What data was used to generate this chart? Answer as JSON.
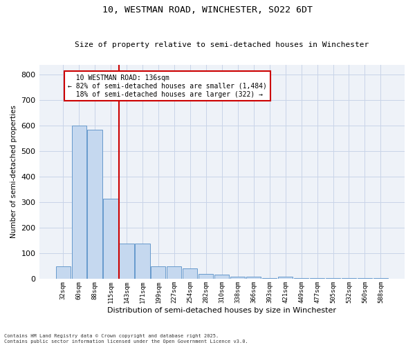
{
  "title_line1": "10, WESTMAN ROAD, WINCHESTER, SO22 6DT",
  "title_line2": "Size of property relative to semi-detached houses in Winchester",
  "xlabel": "Distribution of semi-detached houses by size in Winchester",
  "ylabel": "Number of semi-detached properties",
  "categories": [
    "32sqm",
    "60sqm",
    "88sqm",
    "115sqm",
    "143sqm",
    "171sqm",
    "199sqm",
    "227sqm",
    "254sqm",
    "282sqm",
    "310sqm",
    "338sqm",
    "366sqm",
    "393sqm",
    "421sqm",
    "449sqm",
    "477sqm",
    "505sqm",
    "532sqm",
    "560sqm",
    "588sqm"
  ],
  "values": [
    50,
    600,
    585,
    315,
    140,
    140,
    50,
    50,
    43,
    20,
    18,
    9,
    9,
    4,
    9,
    4,
    4,
    4,
    4,
    4,
    4
  ],
  "bar_color": "#c5d8ef",
  "bar_edgecolor": "#6699cc",
  "vline_color": "#cc0000",
  "vline_x_index": 3.5,
  "annotation_box_edgecolor": "#cc0000",
  "property_label": "10 WESTMAN ROAD: 136sqm",
  "pct_smaller": 82,
  "count_smaller": 1484,
  "pct_larger": 18,
  "count_larger": 322,
  "footnote": "Contains HM Land Registry data © Crown copyright and database right 2025.\nContains public sector information licensed under the Open Government Licence v3.0.",
  "ylim": [
    0,
    840
  ],
  "yticks": [
    0,
    100,
    200,
    300,
    400,
    500,
    600,
    700,
    800
  ],
  "grid_color": "#c8d4e8",
  "background_color": "#eef2f8",
  "title1_fontsize": 9.5,
  "title2_fontsize": 8,
  "xlabel_fontsize": 8,
  "ylabel_fontsize": 7.5,
  "xtick_fontsize": 6.5,
  "ytick_fontsize": 8,
  "annot_fontsize": 7,
  "footnote_fontsize": 5
}
